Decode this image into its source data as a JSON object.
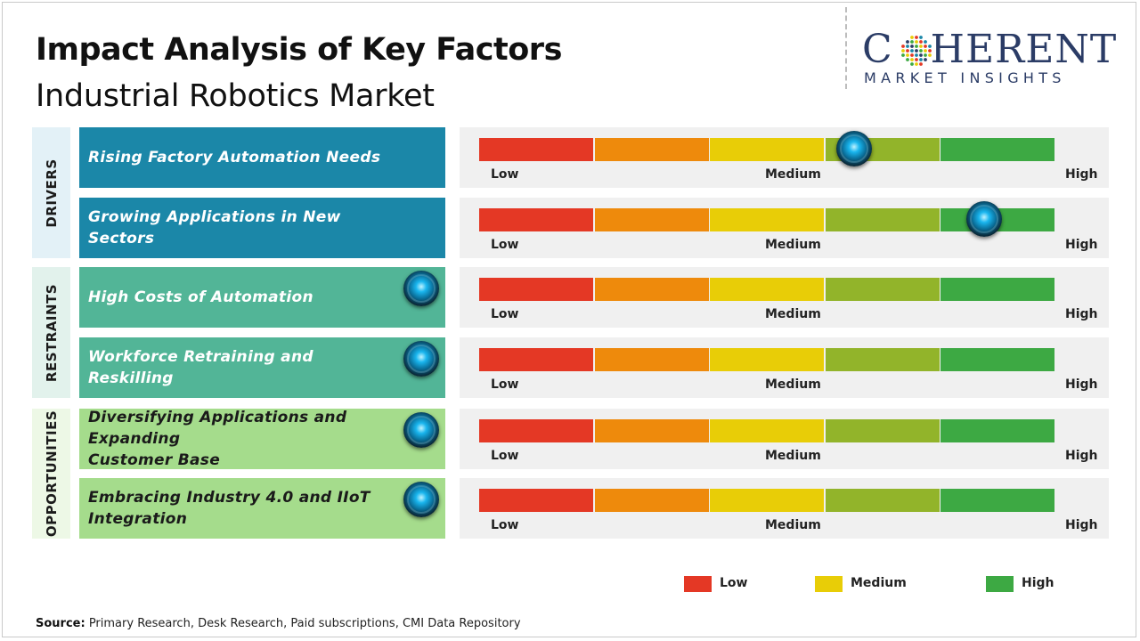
{
  "title": "Impact Analysis of Key Factors",
  "subtitle": "Industrial Robotics Market",
  "logo": {
    "main_left": "C",
    "main_right": "HERENT",
    "sub": "MARKET INSIGHTS"
  },
  "colors": {
    "drivers_bg": "#1b87a8",
    "restraints_bg": "#52b597",
    "opportunities_bg": "#a5dc8c",
    "drivers_cat_bg": "#e3f1f7",
    "restraints_cat_bg": "#e2f2ec",
    "opportunities_cat_bg": "#edf8e6",
    "scale": [
      "#e43825",
      "#ee8a0c",
      "#e8cd07",
      "#92b42a",
      "#3da943"
    ]
  },
  "chart_data": {
    "type": "table",
    "scale_labels": [
      "Low",
      "Medium",
      "High"
    ],
    "categories": [
      {
        "name": "DRIVERS",
        "key": "drivers",
        "factors": [
          {
            "label": "Rising Factory Automation Needs",
            "impact": 0.65
          },
          {
            "label": "Growing Applications in New Sectors",
            "impact": 0.875
          }
        ]
      },
      {
        "name": "RESTRAINTS",
        "key": "restraints",
        "factors": [
          {
            "label": "High Costs of Automation",
            "impact": 0.0
          },
          {
            "label": "Workforce Retraining and Reskilling",
            "impact": 0.0
          }
        ]
      },
      {
        "name": "OPPORTUNITIES",
        "key": "opportunities",
        "factors": [
          {
            "label": "Diversifying Applications and Expanding\nCustomer Base",
            "impact": 0.0
          },
          {
            "label": "Embracing Industry 4.0 and IIoT Integration",
            "impact": 0.0
          }
        ]
      }
    ],
    "legend": [
      "Low",
      "Medium",
      "High"
    ]
  },
  "source_label": "Source:",
  "source_text": " Primary Research, Desk Research, Paid subscriptions, CMI Data Repository"
}
